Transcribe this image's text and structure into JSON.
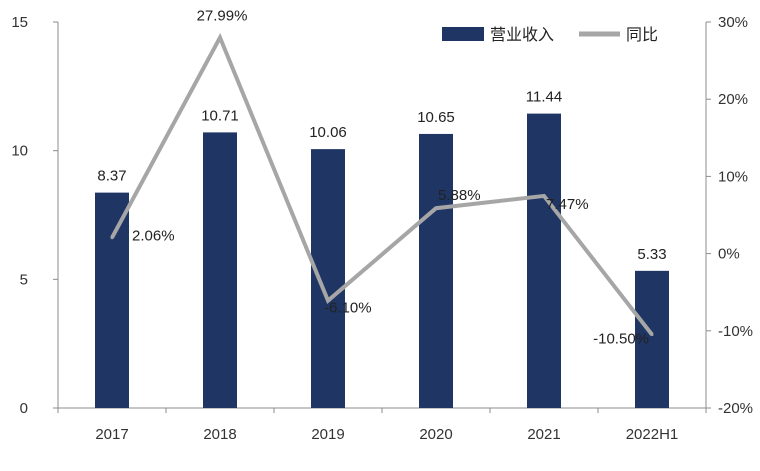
{
  "chart_data": {
    "type": "bar",
    "categories": [
      "2017",
      "2018",
      "2019",
      "2020",
      "2021",
      "2022H1"
    ],
    "series": [
      {
        "name": "营业收入",
        "type": "bar",
        "axis": "left",
        "values": [
          8.37,
          10.71,
          10.06,
          10.65,
          11.44,
          5.33
        ],
        "labels": [
          "8.37",
          "10.71",
          "10.06",
          "10.65",
          "11.44",
          "5.33"
        ]
      },
      {
        "name": "同比",
        "type": "line",
        "axis": "right",
        "values": [
          2.06,
          27.99,
          -6.1,
          5.88,
          7.47,
          -10.5
        ],
        "labels": [
          "2.06%",
          "27.99%",
          "-6.10%",
          "5.88%",
          "7.47%",
          "-10.50%"
        ]
      }
    ],
    "y_left": {
      "ylim": [
        0,
        15
      ],
      "ticks": [
        "0",
        "5",
        "10",
        "15"
      ]
    },
    "y_right": {
      "ylim": [
        -20,
        30
      ],
      "ticks": [
        "-20%",
        "-10%",
        "0%",
        "10%",
        "20%",
        "30%"
      ]
    },
    "grid": false,
    "legend": "top-right",
    "colors": {
      "bar": "#1f3563",
      "line": "#a6a6a6"
    }
  }
}
